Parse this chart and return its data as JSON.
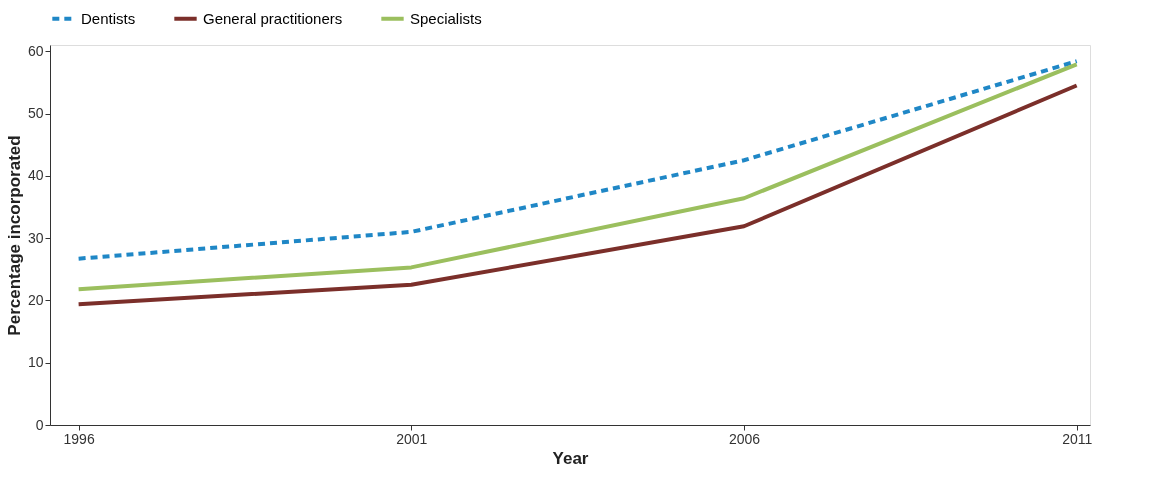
{
  "chart_data": {
    "type": "line",
    "xlabel": "Year",
    "ylabel": "Percentage incorporated",
    "x": [
      1996,
      2001,
      2006,
      2011
    ],
    "xlim": [
      1995.57,
      2011.2
    ],
    "xticks": [
      1996,
      2001,
      2006,
      2011
    ],
    "ylim": [
      0,
      61
    ],
    "yticks": [
      0,
      10,
      20,
      30,
      40,
      50,
      60
    ],
    "grid": false,
    "legend": "top",
    "marker": "none",
    "series": [
      {
        "name": "Dentists",
        "color": "#1f87c6",
        "line_style": "dashed",
        "values": [
          26.7,
          31.0,
          42.5,
          58.4
        ]
      },
      {
        "name": "General practitioners",
        "color": "#7b2f2a",
        "line_style": "solid",
        "values": [
          19.4,
          22.5,
          31.9,
          54.5
        ]
      },
      {
        "name": "Specialists",
        "color": "#9bbf5e",
        "line_style": "solid",
        "values": [
          21.8,
          25.3,
          36.4,
          57.9
        ]
      }
    ]
  }
}
